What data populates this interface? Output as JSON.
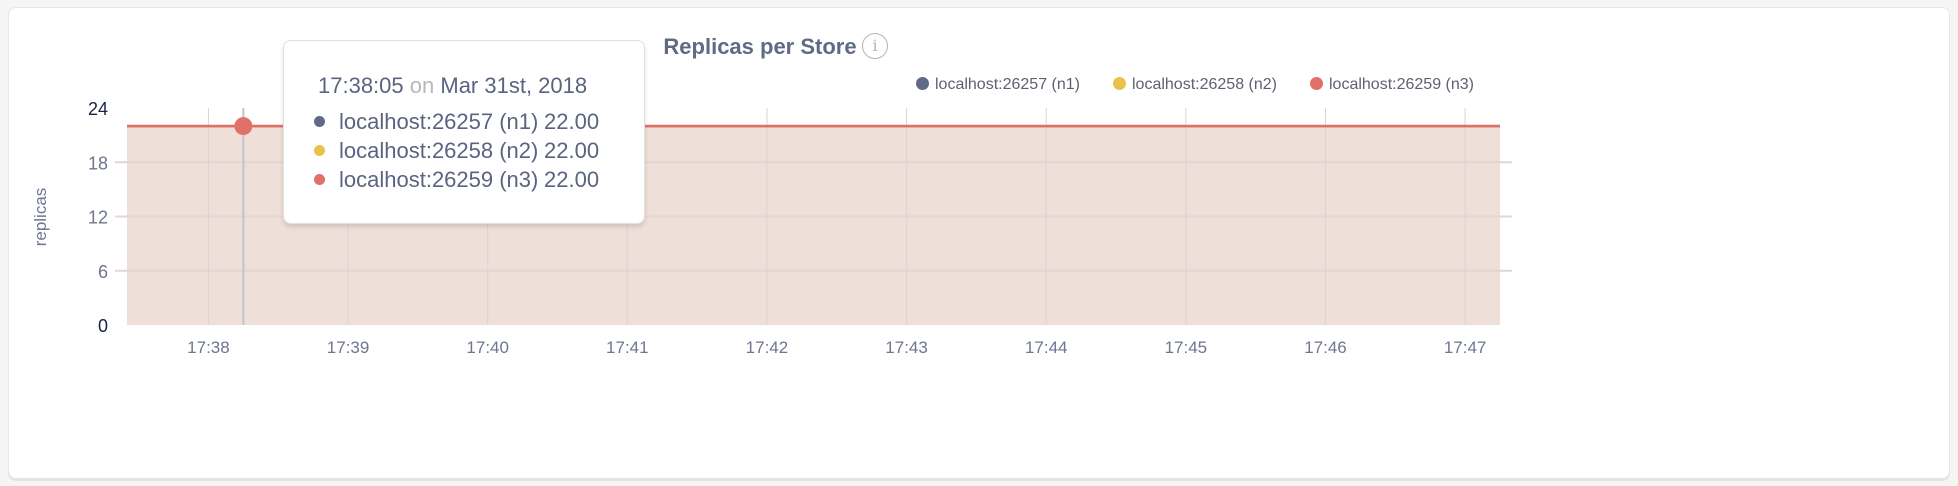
{
  "chart_data": {
    "type": "area",
    "title": "Replicas per Store",
    "ylabel": "replicas",
    "xlabel": "",
    "ylim": [
      0,
      24
    ],
    "yticks": [
      "0",
      "6",
      "12",
      "18",
      "24"
    ],
    "xticks": [
      "17:38",
      "17:39",
      "17:40",
      "17:41",
      "17:42",
      "17:43",
      "17:44",
      "17:45",
      "17:46",
      "17:47"
    ],
    "xlim": [
      "17:37:25",
      "17:47:15"
    ],
    "grid": true,
    "legend_position": "top-right",
    "series": [
      {
        "name": "localhost:26257 (n1)",
        "color": "#5f6b85",
        "x": [
          "17:37:25",
          "17:47:15"
        ],
        "values": [
          22,
          22
        ]
      },
      {
        "name": "localhost:26258 (n2)",
        "color": "#ebc14d",
        "x": [
          "17:37:25",
          "17:47:15"
        ],
        "values": [
          22,
          22
        ]
      },
      {
        "name": "localhost:26259 (n3)",
        "color": "#e2706a",
        "x": [
          "17:37:25",
          "17:47:15"
        ],
        "values": [
          22,
          22
        ]
      }
    ],
    "area_fill": "#eedfd8",
    "hover": {
      "x": "17:38:15",
      "time": "17:38:05",
      "on": "on",
      "date": "Mar 31st, 2018",
      "values": [
        "22.00",
        "22.00",
        "22.00"
      ]
    }
  }
}
